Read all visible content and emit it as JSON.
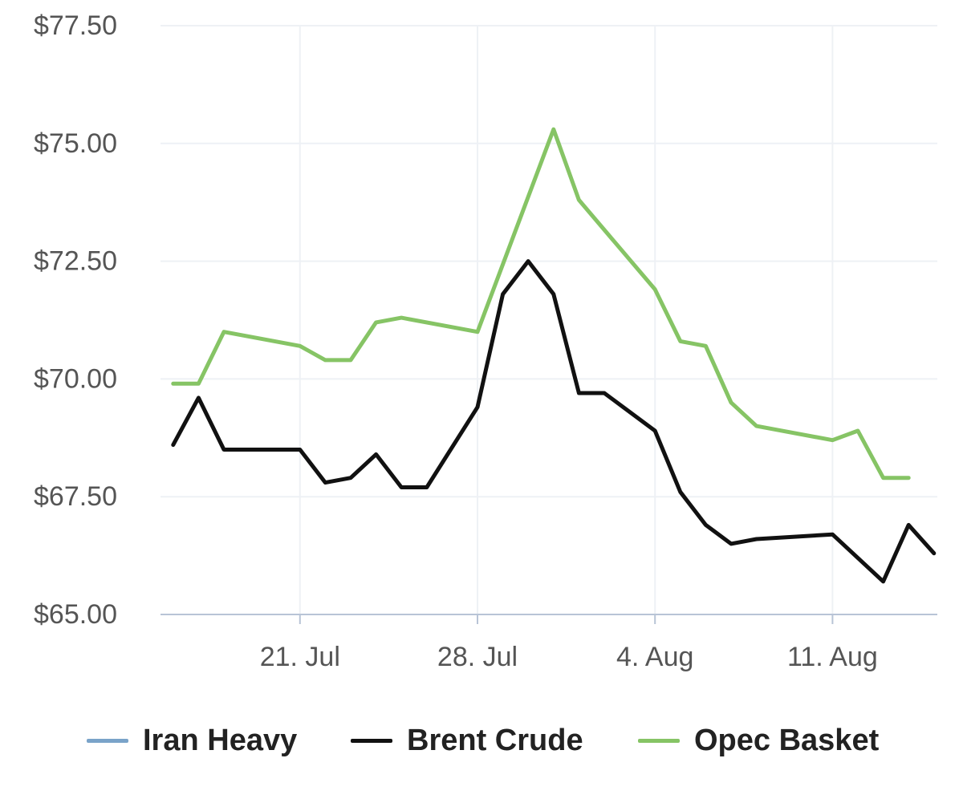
{
  "chart_data": {
    "type": "line",
    "title": "",
    "xlabel": "",
    "ylabel": "",
    "y_ticks": [
      "$65.00",
      "$67.50",
      "$70.00",
      "$72.50",
      "$75.00",
      "$77.50"
    ],
    "ylim": [
      65,
      77.5
    ],
    "x_ticks": [
      "21. Jul",
      "28. Jul",
      "4. Aug",
      "11. Aug"
    ],
    "grid": true,
    "legend_placement": "bottom",
    "series": [
      {
        "name": "Iran Heavy",
        "color": "#7aa3c9",
        "points": []
      },
      {
        "name": "Brent Crude",
        "color": "#111111",
        "points": [
          {
            "x": "2021-07-16",
            "y": 68.6
          },
          {
            "x": "2021-07-17",
            "y": 69.6
          },
          {
            "x": "2021-07-18",
            "y": 68.5
          },
          {
            "x": "2021-07-20",
            "y": 68.5
          },
          {
            "x": "2021-07-21",
            "y": 68.5
          },
          {
            "x": "2021-07-22",
            "y": 67.8
          },
          {
            "x": "2021-07-23",
            "y": 67.9
          },
          {
            "x": "2021-07-24",
            "y": 68.4
          },
          {
            "x": "2021-07-25",
            "y": 67.7
          },
          {
            "x": "2021-07-26",
            "y": 67.7
          },
          {
            "x": "2021-07-28",
            "y": 69.4
          },
          {
            "x": "2021-07-29",
            "y": 71.8
          },
          {
            "x": "2021-07-30",
            "y": 72.5
          },
          {
            "x": "2021-07-31",
            "y": 71.8
          },
          {
            "x": "2021-08-01",
            "y": 69.7
          },
          {
            "x": "2021-08-02",
            "y": 69.7
          },
          {
            "x": "2021-08-04",
            "y": 68.9
          },
          {
            "x": "2021-08-05",
            "y": 67.6
          },
          {
            "x": "2021-08-06",
            "y": 66.9
          },
          {
            "x": "2021-08-07",
            "y": 66.5
          },
          {
            "x": "2021-08-08",
            "y": 66.6
          },
          {
            "x": "2021-08-11",
            "y": 66.7
          },
          {
            "x": "2021-08-13",
            "y": 65.7
          },
          {
            "x": "2021-08-14",
            "y": 66.9
          },
          {
            "x": "2021-08-15",
            "y": 66.3
          }
        ]
      },
      {
        "name": "Opec Basket",
        "color": "#86c465",
        "points": [
          {
            "x": "2021-07-16",
            "y": 69.9
          },
          {
            "x": "2021-07-17",
            "y": 69.9
          },
          {
            "x": "2021-07-18",
            "y": 71.0
          },
          {
            "x": "2021-07-21",
            "y": 70.7
          },
          {
            "x": "2021-07-22",
            "y": 70.4
          },
          {
            "x": "2021-07-23",
            "y": 70.4
          },
          {
            "x": "2021-07-24",
            "y": 71.2
          },
          {
            "x": "2021-07-25",
            "y": 71.3
          },
          {
            "x": "2021-07-28",
            "y": 71.0
          },
          {
            "x": "2021-07-31",
            "y": 75.3
          },
          {
            "x": "2021-08-01",
            "y": 73.8
          },
          {
            "x": "2021-08-04",
            "y": 71.9
          },
          {
            "x": "2021-08-05",
            "y": 70.8
          },
          {
            "x": "2021-08-06",
            "y": 70.7
          },
          {
            "x": "2021-08-07",
            "y": 69.5
          },
          {
            "x": "2021-08-08",
            "y": 69.0
          },
          {
            "x": "2021-08-11",
            "y": 68.7
          },
          {
            "x": "2021-08-12",
            "y": 68.9
          },
          {
            "x": "2021-08-13",
            "y": 67.9
          },
          {
            "x": "2021-08-14",
            "y": 67.9
          }
        ]
      }
    ]
  },
  "legend": {
    "items": [
      {
        "label": "Iran Heavy",
        "color": "#7aa3c9"
      },
      {
        "label": "Brent Crude",
        "color": "#111111"
      },
      {
        "label": "Opec Basket",
        "color": "#86c465"
      }
    ]
  }
}
